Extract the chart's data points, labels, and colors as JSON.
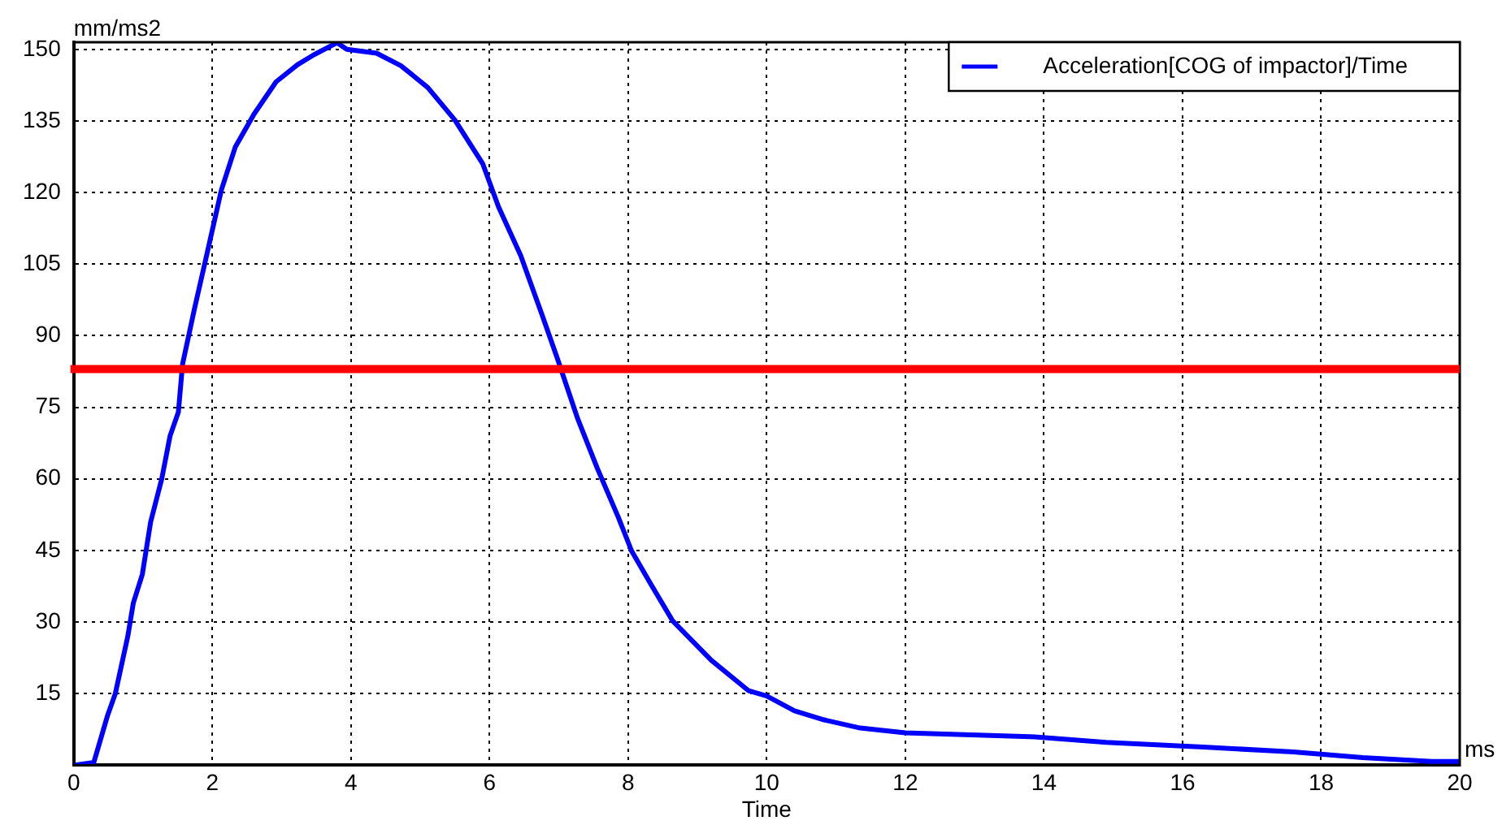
{
  "chart_data": {
    "type": "line",
    "xlabel": "Time",
    "ylabel": "mm/ms2",
    "annotations": [
      "ms"
    ],
    "legend": "top right",
    "grid": true,
    "marker": "none",
    "line_style": "solid",
    "xlim": [
      0,
      20
    ],
    "ylim": [
      0,
      151.5
    ],
    "xticks": [
      0,
      2,
      4,
      6,
      8,
      10,
      12,
      14,
      16,
      18,
      20
    ],
    "yticks": [
      15,
      30,
      45,
      60,
      75,
      90,
      105,
      120,
      135,
      150
    ],
    "ref_lines": [
      {
        "axis": "y",
        "value": 83,
        "color": "#ff0000"
      }
    ],
    "series": [
      {
        "name": "Acceleration[COG of impactor]/Time",
        "color": "#0000ff",
        "x": [
          0,
          0.29,
          0.49,
          0.6,
          0.78,
          0.86,
          0.99,
          1.11,
          1.27,
          1.39,
          1.51,
          1.57,
          1.74,
          1.9,
          2.13,
          2.33,
          2.6,
          2.92,
          3.23,
          3.47,
          3.8,
          3.94,
          4.37,
          4.72,
          5.11,
          5.5,
          5.9,
          6.13,
          6.45,
          6.76,
          6.98,
          7.27,
          7.55,
          7.86,
          8.05,
          8.33,
          8.64,
          9.2,
          9.74,
          10,
          10.4,
          10.8,
          11.35,
          12,
          13.8,
          14.9,
          16.3,
          17.6,
          18.6,
          19.6,
          20
        ],
        "values": [
          0,
          0.6,
          10.5,
          15,
          27,
          34,
          40,
          51,
          60,
          69,
          74,
          84,
          95.5,
          105.7,
          120.5,
          129.5,
          136.4,
          143.2,
          146.8,
          148.9,
          151.4,
          150,
          149.2,
          146.6,
          142,
          135.2,
          126.1,
          117,
          106.8,
          94.3,
          85.2,
          72.7,
          62.4,
          51.9,
          44.9,
          37.9,
          30.3,
          22,
          15.6,
          14.5,
          11.4,
          9.6,
          7.8,
          6.8,
          6,
          4.8,
          3.8,
          2.8,
          1.6,
          0.8,
          0.8
        ]
      }
    ]
  }
}
